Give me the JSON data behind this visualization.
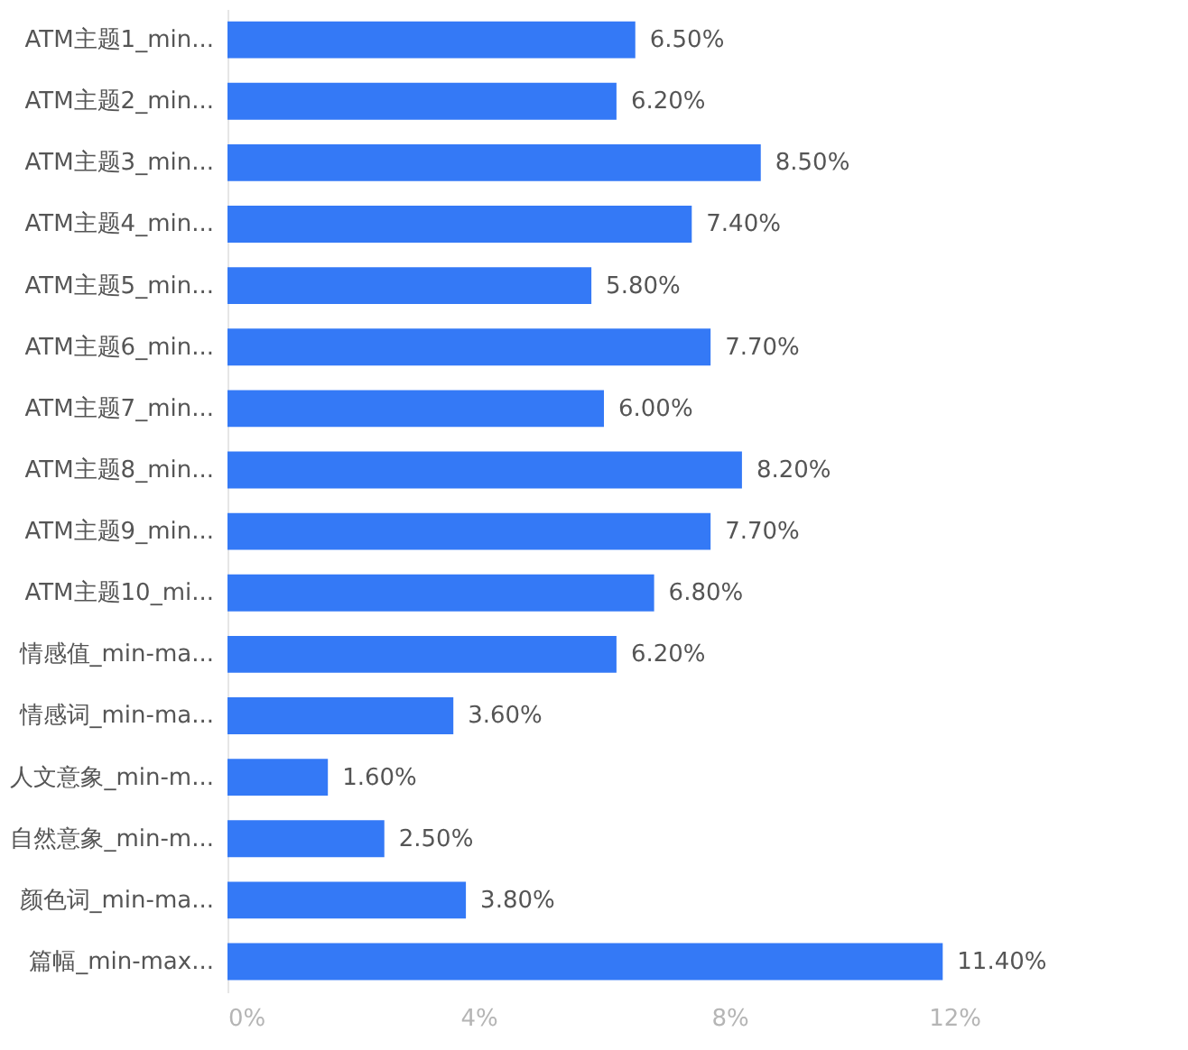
{
  "chart_data": {
    "type": "bar",
    "orientation": "horizontal",
    "categories": [
      "ATM主题1_min...",
      "ATM主题2_min...",
      "ATM主题3_min...",
      "ATM主题4_min...",
      "ATM主题5_min...",
      "ATM主题6_min...",
      "ATM主题7_min...",
      "ATM主题8_min...",
      "ATM主题9_min...",
      "ATM主题10_mi...",
      "情感值_min-ma...",
      "情感词_min-ma...",
      "人文意象_min-m...",
      "自然意象_min-m...",
      "颜色词_min-ma...",
      "篇幅_min-max..."
    ],
    "values": [
      6.5,
      6.2,
      8.5,
      7.4,
      5.8,
      7.7,
      6.0,
      8.2,
      7.7,
      6.8,
      6.2,
      3.6,
      1.6,
      2.5,
      3.8,
      11.4
    ],
    "value_labels": [
      "6.50%",
      "6.20%",
      "8.50%",
      "7.40%",
      "5.80%",
      "7.70%",
      "6.00%",
      "8.20%",
      "7.70%",
      "6.80%",
      "6.20%",
      "3.60%",
      "1.60%",
      "2.50%",
      "3.80%",
      "11.40%"
    ],
    "color": "#3479f6",
    "xlim": [
      0,
      12
    ],
    "xticks": [
      {
        "value": 0,
        "label": "0%"
      },
      {
        "value": 4,
        "label": "4%"
      },
      {
        "value": 8,
        "label": "8%"
      },
      {
        "value": 12,
        "label": "12%"
      }
    ],
    "grid": false
  }
}
